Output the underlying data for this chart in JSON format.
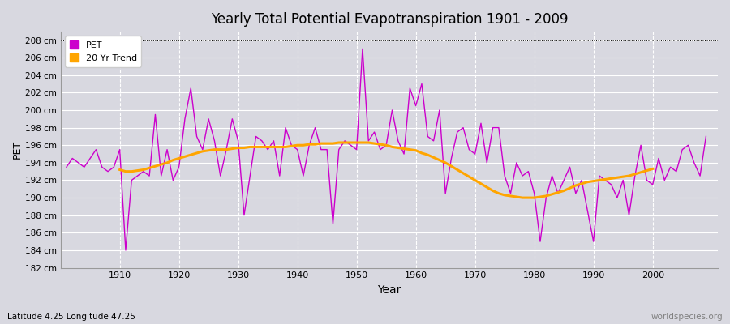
{
  "title": "Yearly Total Potential Evapotranspiration 1901 - 2009",
  "xlabel": "Year",
  "ylabel": "PET",
  "subtitle": "Latitude 4.25 Longitude 47.25",
  "watermark": "worldspecies.org",
  "ylim": [
    182,
    209
  ],
  "ytick_min": 182,
  "ytick_max": 208,
  "ytick_step": 2,
  "background_color": "#d8d8e0",
  "plot_bg_color": "#d8d8e0",
  "pet_color": "#cc00cc",
  "trend_color": "#ffa500",
  "pet_label": "PET",
  "trend_label": "20 Yr Trend",
  "years": [
    1901,
    1902,
    1903,
    1904,
    1905,
    1906,
    1907,
    1908,
    1909,
    1910,
    1911,
    1912,
    1913,
    1914,
    1915,
    1916,
    1917,
    1918,
    1919,
    1920,
    1921,
    1922,
    1923,
    1924,
    1925,
    1926,
    1927,
    1928,
    1929,
    1930,
    1931,
    1932,
    1933,
    1934,
    1935,
    1936,
    1937,
    1938,
    1939,
    1940,
    1941,
    1942,
    1943,
    1944,
    1945,
    1946,
    1947,
    1948,
    1949,
    1950,
    1951,
    1952,
    1953,
    1954,
    1955,
    1956,
    1957,
    1958,
    1959,
    1960,
    1961,
    1962,
    1963,
    1964,
    1965,
    1966,
    1967,
    1968,
    1969,
    1970,
    1971,
    1972,
    1973,
    1974,
    1975,
    1976,
    1977,
    1978,
    1979,
    1980,
    1981,
    1982,
    1983,
    1984,
    1985,
    1986,
    1987,
    1988,
    1989,
    1990,
    1991,
    1992,
    1993,
    1994,
    1995,
    1996,
    1997,
    1998,
    1999,
    2000,
    2001,
    2002,
    2003,
    2004,
    2005,
    2006,
    2007,
    2008,
    2009
  ],
  "pet_values": [
    193.5,
    194.5,
    194.0,
    193.5,
    194.5,
    195.5,
    193.5,
    193.0,
    193.5,
    195.5,
    184.0,
    192.0,
    192.5,
    193.0,
    192.5,
    199.5,
    192.5,
    195.5,
    192.0,
    193.5,
    199.0,
    202.5,
    197.0,
    195.5,
    199.0,
    196.5,
    192.5,
    195.5,
    199.0,
    196.5,
    188.0,
    192.5,
    197.0,
    196.5,
    195.5,
    196.5,
    192.5,
    198.0,
    196.0,
    195.5,
    192.5,
    196.0,
    198.0,
    195.5,
    195.5,
    187.0,
    195.5,
    196.5,
    196.0,
    195.5,
    207.0,
    196.5,
    197.5,
    195.5,
    196.0,
    200.0,
    196.5,
    195.0,
    202.5,
    200.5,
    203.0,
    197.0,
    196.5,
    200.0,
    190.5,
    194.5,
    197.5,
    198.0,
    195.5,
    195.0,
    198.5,
    194.0,
    198.0,
    198.0,
    192.5,
    190.5,
    194.0,
    192.5,
    193.0,
    190.5,
    185.0,
    190.0,
    192.5,
    190.5,
    192.0,
    193.5,
    190.5,
    192.0,
    188.5,
    185.0,
    192.5,
    192.0,
    191.5,
    190.0,
    192.0,
    188.0,
    192.5,
    196.0,
    192.0,
    191.5,
    194.5,
    192.0,
    193.5,
    193.0,
    195.5,
    196.0,
    194.0,
    192.5,
    197.0
  ],
  "trend_years": [
    1910,
    1911,
    1912,
    1913,
    1914,
    1915,
    1916,
    1917,
    1918,
    1919,
    1920,
    1921,
    1922,
    1923,
    1924,
    1925,
    1926,
    1927,
    1928,
    1929,
    1930,
    1931,
    1932,
    1933,
    1934,
    1935,
    1936,
    1937,
    1938,
    1939,
    1940,
    1941,
    1942,
    1943,
    1944,
    1945,
    1946,
    1947,
    1948,
    1949,
    1950,
    1951,
    1952,
    1953,
    1954,
    1955,
    1956,
    1957,
    1958,
    1959,
    1960,
    1961,
    1962,
    1963,
    1964,
    1965,
    1966,
    1967,
    1968,
    1969,
    1970,
    1971,
    1972,
    1973,
    1974,
    1975,
    1976,
    1977,
    1978,
    1979,
    1980,
    1981,
    1982,
    1983,
    1984,
    1985,
    1986,
    1987,
    1988,
    1989,
    1990,
    1991,
    1992,
    1993,
    1994,
    1995,
    1996,
    1997,
    1998,
    1999,
    2000
  ],
  "trend_values": [
    193.2,
    193.0,
    193.0,
    193.1,
    193.2,
    193.4,
    193.6,
    193.8,
    194.0,
    194.3,
    194.5,
    194.7,
    194.9,
    195.1,
    195.3,
    195.4,
    195.5,
    195.5,
    195.5,
    195.6,
    195.7,
    195.7,
    195.8,
    195.8,
    195.8,
    195.8,
    195.8,
    195.8,
    195.8,
    195.9,
    196.0,
    196.0,
    196.1,
    196.1,
    196.2,
    196.2,
    196.2,
    196.3,
    196.3,
    196.3,
    196.3,
    196.3,
    196.3,
    196.2,
    196.1,
    196.0,
    195.8,
    195.7,
    195.6,
    195.5,
    195.4,
    195.1,
    194.9,
    194.6,
    194.3,
    194.0,
    193.6,
    193.2,
    192.8,
    192.4,
    192.0,
    191.6,
    191.2,
    190.8,
    190.5,
    190.3,
    190.2,
    190.1,
    190.0,
    190.0,
    190.0,
    190.1,
    190.2,
    190.4,
    190.6,
    190.8,
    191.1,
    191.4,
    191.6,
    191.8,
    191.9,
    192.0,
    192.1,
    192.2,
    192.3,
    192.4,
    192.5,
    192.7,
    192.9,
    193.1,
    193.3
  ]
}
